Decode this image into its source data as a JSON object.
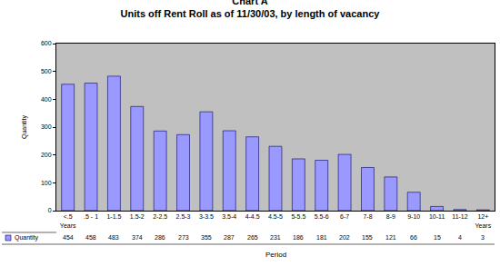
{
  "chart_data": {
    "type": "bar",
    "title": "Chart A",
    "subtitle": "Units off Rent Roll as of 11/30/03, by length of vacancy",
    "x_label": "Period",
    "y_label": "Quantity",
    "categories": [
      "<.5 Years",
      ".5 - 1",
      "1-1.5",
      "1.5-2",
      "2-2.5",
      "2.5-3",
      "3-3.5",
      "3.5-4",
      "4-4.5",
      "4.5-5",
      "5-5.5",
      "5.5-6",
      "6-7",
      "7-8",
      "8-9",
      "9-10",
      "10-11",
      "11-12",
      "12+ Years"
    ],
    "series": [
      {
        "name": "Quantity",
        "color": "#9999ff",
        "values": [
          454,
          458,
          483,
          374,
          286,
          273,
          355,
          287,
          265,
          231,
          186,
          181,
          202,
          155,
          121,
          66,
          15,
          4,
          3
        ]
      }
    ],
    "ylim": [
      0,
      600
    ],
    "yticks": [
      0,
      100,
      200,
      300,
      400,
      500,
      600
    ],
    "grid": false,
    "data_labels": true
  }
}
